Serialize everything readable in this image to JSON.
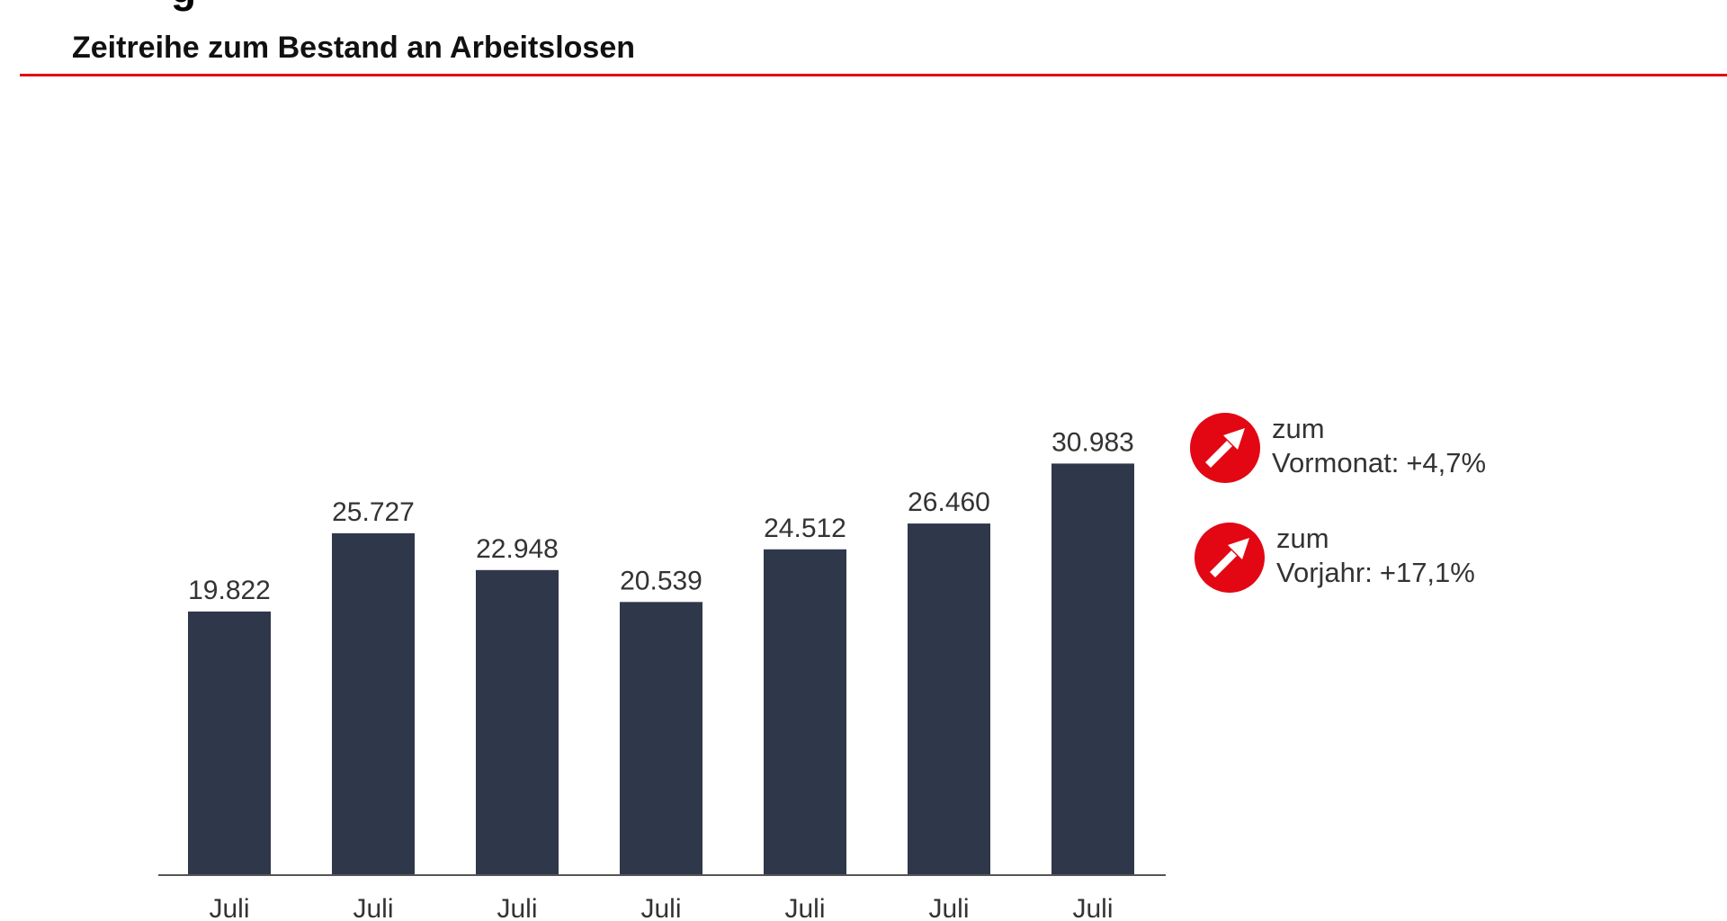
{
  "header": {
    "section_title": "Zeitreihe zum Bestand an Arbeitslosen"
  },
  "colors": {
    "bar": "#2f374b",
    "accent": "#e30613",
    "axis": "#555555",
    "label": "#333333"
  },
  "chart_data": {
    "type": "bar",
    "title": "Zeitreihe zum Bestand an Arbeitslosen",
    "categories": [
      "Juli",
      "Juli",
      "Juli",
      "Juli",
      "Juli",
      "Juli",
      "Juli"
    ],
    "values": [
      19822,
      25727,
      22948,
      20539,
      24512,
      26460,
      30983
    ],
    "value_labels": [
      "19.822",
      "25.727",
      "22.948",
      "20.539",
      "24.512",
      "26.460",
      "30.983"
    ],
    "ylim": [
      0,
      38000
    ],
    "grid": false,
    "xlabel": "",
    "ylabel": ""
  },
  "changes": [
    {
      "icon": "up-arrow-icon",
      "line1": "zum",
      "line2": "Vormonat:",
      "value": "+4,7%"
    },
    {
      "icon": "up-arrow-icon",
      "line1": "zum",
      "line2": "Vorjahr:",
      "value": "+17,1%"
    }
  ]
}
